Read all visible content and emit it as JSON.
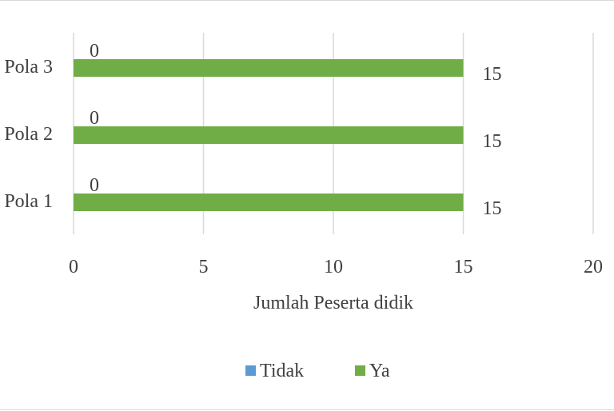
{
  "chart_data": {
    "type": "bar",
    "orientation": "horizontal",
    "stacked": true,
    "categories": [
      "Pola 1",
      "Pola 2",
      "Pola 3"
    ],
    "series": [
      {
        "name": "Tidak",
        "color": "#5b9bd5",
        "values": [
          0,
          0,
          0
        ]
      },
      {
        "name": "Ya",
        "color": "#70ad47",
        "values": [
          15,
          15,
          15
        ]
      }
    ],
    "xlabel": "Jumlah Peserta didik",
    "ylabel": "",
    "xlim": [
      0,
      20
    ],
    "xticks": [
      "0",
      "5",
      "10",
      "15",
      "20"
    ],
    "grid": true,
    "legend_position": "bottom"
  }
}
